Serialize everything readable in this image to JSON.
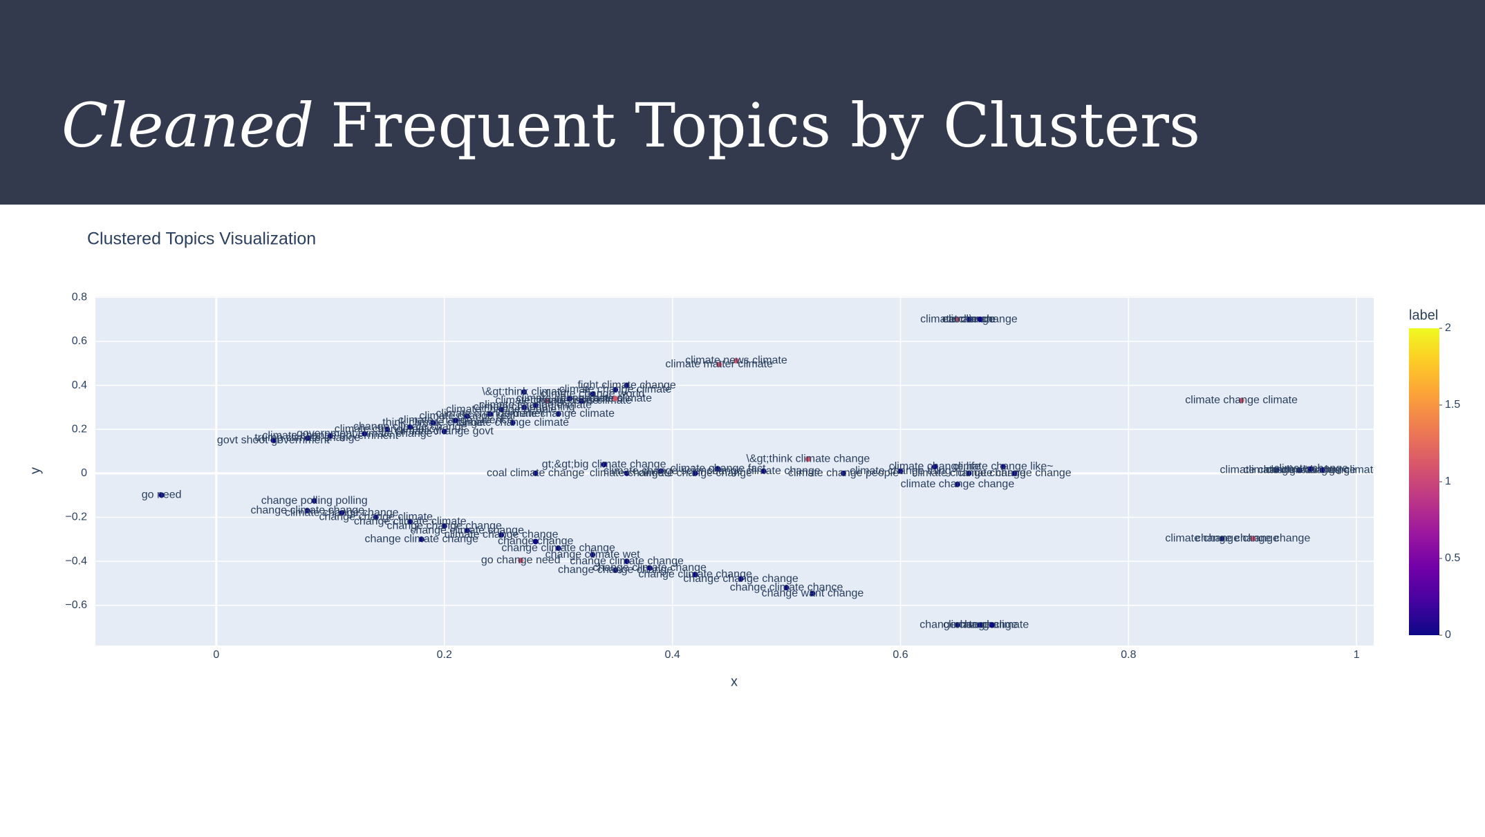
{
  "header": {
    "title_italic": "Cleaned",
    "title_rest": "Frequent Topics by Clusters"
  },
  "chart_data": {
    "type": "scatter",
    "title": "Clustered Topics Visualization",
    "x_label": "x",
    "y_label": "y",
    "xlim": [
      -0.106,
      1.015
    ],
    "ylim": [
      -0.783,
      0.804
    ],
    "xticks": [
      0,
      0.2,
      0.4,
      0.6,
      0.8,
      1
    ],
    "yticks": [
      {
        "value": -0.6,
        "label": "−0.6"
      },
      {
        "value": -0.4,
        "label": "−0.4"
      },
      {
        "value": -0.2,
        "label": "−0.2"
      },
      0,
      0.2,
      0.4,
      0.6,
      0.8
    ],
    "grid": true,
    "colorbar": {
      "title": "label",
      "lim": [
        0,
        2
      ],
      "ticks": [
        0,
        0.5,
        1,
        1.5,
        2
      ],
      "colorscale": [
        "#0d0887",
        "#46039f",
        "#7201a8",
        "#9c179e",
        "#bd3786",
        "#d8576b",
        "#ed7953",
        "#fb9f3a",
        "#fdca26",
        "#f0f921"
      ]
    },
    "points": [
      {
        "x": -0.048,
        "y": -0.099,
        "label": 0,
        "text": "go need"
      },
      {
        "x": 0.05,
        "y": 0.15,
        "label": 0,
        "text": "govt shoot government"
      },
      {
        "x": 0.08,
        "y": 0.16,
        "label": 0,
        "text": "trump climate change"
      },
      {
        "x": 0.1,
        "y": 0.17,
        "label": 0,
        "text": "climate change government"
      },
      {
        "x": 0.13,
        "y": 0.18,
        "label": 0,
        "text": "government climate change"
      },
      {
        "x": 0.15,
        "y": 0.2,
        "label": 0,
        "text": "climate change policy"
      },
      {
        "x": 0.17,
        "y": 0.21,
        "label": 0,
        "text": "change climate change"
      },
      {
        "x": 0.19,
        "y": 0.23,
        "label": 0,
        "text": "think climate change"
      },
      {
        "x": 0.2,
        "y": 0.19,
        "label": 0,
        "text": "climate change govt"
      },
      {
        "x": 0.21,
        "y": 0.24,
        "label": 0,
        "text": "climate change science"
      },
      {
        "x": 0.22,
        "y": 0.26,
        "label": 0,
        "text": "climate change real"
      },
      {
        "x": 0.24,
        "y": 0.27,
        "label": 0,
        "text": "climate change denier"
      },
      {
        "x": 0.25,
        "y": 0.29,
        "label": 0,
        "text": "climate change people"
      },
      {
        "x": 0.26,
        "y": 0.23,
        "label": 0,
        "text": "climate change climate"
      },
      {
        "x": 0.27,
        "y": 0.3,
        "label": 0,
        "text": "climate change thing"
      },
      {
        "x": 0.27,
        "y": 0.37,
        "label": 0,
        "text": "\\&gt;think climate"
      },
      {
        "x": 0.28,
        "y": 0.31,
        "label": 0,
        "text": "climate change climate"
      },
      {
        "x": 0.29,
        "y": 0.33,
        "label": 1,
        "text": "climate change issue"
      },
      {
        "x": 0.3,
        "y": 0.27,
        "label": 0,
        "text": "climate change climate"
      },
      {
        "x": 0.31,
        "y": 0.34,
        "label": 0,
        "text": "climate change action"
      },
      {
        "x": 0.32,
        "y": 0.33,
        "label": 0,
        "text": "climate crisis climate"
      },
      {
        "x": 0.33,
        "y": 0.36,
        "label": 0,
        "text": "climate change world"
      },
      {
        "x": 0.35,
        "y": 0.38,
        "label": 0,
        "text": "climate change climate"
      },
      {
        "x": 0.35,
        "y": 0.34,
        "label": 1,
        "text": "climate climate"
      },
      {
        "x": 0.36,
        "y": 0.4,
        "label": 0,
        "text": "fight climate change"
      },
      {
        "x": 0.456,
        "y": 0.512,
        "label": 1,
        "text": "climate news climate"
      },
      {
        "x": 0.441,
        "y": 0.495,
        "label": 1,
        "text": "climate matter climate"
      },
      {
        "x": 0.28,
        "y": 0.0,
        "label": 0,
        "text": "coal climate change"
      },
      {
        "x": 0.34,
        "y": 0.04,
        "label": 0,
        "text": "gt;&gt;big climate change"
      },
      {
        "x": 0.36,
        "y": 0.0,
        "label": 0,
        "text": "climate change"
      },
      {
        "x": 0.39,
        "y": 0.01,
        "label": 0,
        "text": "climate change science"
      },
      {
        "x": 0.42,
        "y": 0.0,
        "label": 0,
        "text": "climate change change"
      },
      {
        "x": 0.44,
        "y": 0.02,
        "label": 0,
        "text": "climate change fact"
      },
      {
        "x": 0.48,
        "y": 0.01,
        "label": 0,
        "text": "change climate change"
      },
      {
        "x": 0.519,
        "y": 0.065,
        "label": 1,
        "text": "\\&gt;think climate change"
      },
      {
        "x": 0.55,
        "y": 0.0,
        "label": 0,
        "text": "climate change people"
      },
      {
        "x": 0.6,
        "y": 0.01,
        "label": 0,
        "text": "climate change thing"
      },
      {
        "x": 0.63,
        "y": 0.03,
        "label": 0,
        "text": "climate change life"
      },
      {
        "x": 0.66,
        "y": 0.0,
        "label": 0,
        "text": "climate change change"
      },
      {
        "x": 0.69,
        "y": 0.03,
        "label": 0,
        "text": "climate change like~"
      },
      {
        "x": 0.7,
        "y": 0.0,
        "label": 0,
        "text": "climate change change"
      },
      {
        "x": 0.65,
        "y": -0.05,
        "label": 0,
        "text": "climate change change"
      },
      {
        "x": 0.086,
        "y": -0.125,
        "label": 0,
        "text": "change polling polling"
      },
      {
        "x": 0.08,
        "y": -0.17,
        "label": 0,
        "text": "change climate change"
      },
      {
        "x": 0.11,
        "y": -0.18,
        "label": 0,
        "text": "climate change change"
      },
      {
        "x": 0.14,
        "y": -0.2,
        "label": 0,
        "text": "change change climate"
      },
      {
        "x": 0.17,
        "y": -0.22,
        "label": 0,
        "text": "change climate climate"
      },
      {
        "x": 0.18,
        "y": -0.3,
        "label": 0,
        "text": "change climate change"
      },
      {
        "x": 0.2,
        "y": -0.24,
        "label": 0,
        "text": "change change change"
      },
      {
        "x": 0.22,
        "y": -0.26,
        "label": 0,
        "text": "change climate change"
      },
      {
        "x": 0.25,
        "y": -0.28,
        "label": 0,
        "text": "climate change change"
      },
      {
        "x": 0.267,
        "y": -0.396,
        "label": 1,
        "text": "go change need"
      },
      {
        "x": 0.28,
        "y": -0.31,
        "label": 0,
        "text": "change change"
      },
      {
        "x": 0.3,
        "y": -0.34,
        "label": 0,
        "text": "change climate change"
      },
      {
        "x": 0.33,
        "y": -0.37,
        "label": 0,
        "text": "change climate wet"
      },
      {
        "x": 0.35,
        "y": -0.44,
        "label": 0,
        "text": "change change change"
      },
      {
        "x": 0.36,
        "y": -0.4,
        "label": 0,
        "text": "change climate change"
      },
      {
        "x": 0.38,
        "y": -0.43,
        "label": 0,
        "text": "change climate change"
      },
      {
        "x": 0.42,
        "y": -0.46,
        "label": 0,
        "text": "change climate change"
      },
      {
        "x": 0.46,
        "y": -0.48,
        "label": 0,
        "text": "change change change"
      },
      {
        "x": 0.5,
        "y": -0.52,
        "label": 0,
        "text": "change climate chance"
      },
      {
        "x": 0.523,
        "y": -0.546,
        "label": 0,
        "text": "change want change"
      },
      {
        "x": 0.65,
        "y": 0.7,
        "label": 1,
        "text": "climate change"
      },
      {
        "x": 0.66,
        "y": 0.7,
        "label": 0,
        "text": "eat climate"
      },
      {
        "x": 0.67,
        "y": 0.7,
        "label": 0,
        "text": "climate change"
      },
      {
        "x": 0.65,
        "y": -0.69,
        "label": 0,
        "text": "change change"
      },
      {
        "x": 0.67,
        "y": -0.69,
        "label": 0,
        "text": "climate change"
      },
      {
        "x": 0.68,
        "y": -0.69,
        "label": 0,
        "text": "change climate"
      },
      {
        "x": 0.899,
        "y": 0.331,
        "label": 1,
        "text": "climate change climate"
      },
      {
        "x": 0.882,
        "y": -0.297,
        "label": 0,
        "text": "climate change change"
      },
      {
        "x": 0.909,
        "y": -0.297,
        "label": 1,
        "text": "change change change"
      },
      {
        "x": 0.93,
        "y": 0.015,
        "label": 0,
        "text": "climate change change"
      },
      {
        "x": 0.95,
        "y": 0.015,
        "label": 0,
        "text": "climate climate change"
      },
      {
        "x": 0.96,
        "y": 0.02,
        "label": 0,
        "text": "climate change"
      },
      {
        "x": 0.97,
        "y": 0.015,
        "label": 0,
        "text": "change change climate"
      }
    ]
  }
}
